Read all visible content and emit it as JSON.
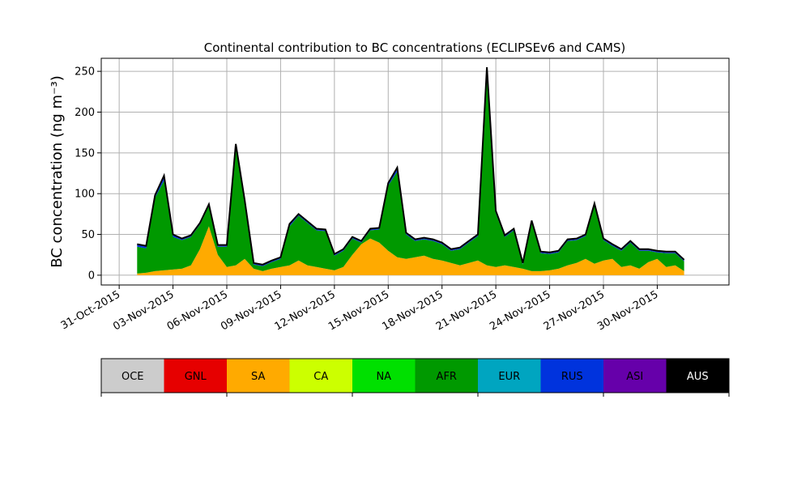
{
  "chart_data": {
    "type": "area",
    "stacked": true,
    "title": "Continental contribution to BC concentrations (ECLIPSEv6 and CAMS)",
    "ylabel": "BC concentration (ng m⁻³)",
    "xlabel": "",
    "x_range": [
      "2015-10-30",
      "2015-12-04"
    ],
    "ylim": [
      -12,
      266
    ],
    "grid": true,
    "xticks": [
      "31-Oct-2015",
      "03-Nov-2015",
      "06-Nov-2015",
      "09-Nov-2015",
      "12-Nov-2015",
      "15-Nov-2015",
      "18-Nov-2015",
      "21-Nov-2015",
      "24-Nov-2015",
      "27-Nov-2015",
      "30-Nov-2015"
    ],
    "yticks": [
      0,
      50,
      100,
      150,
      200,
      250
    ],
    "x": [
      "2015-11-01",
      "2015-11-01T12:00",
      "2015-11-02",
      "2015-11-02T12:00",
      "2015-11-03",
      "2015-11-03T12:00",
      "2015-11-04",
      "2015-11-04T12:00",
      "2015-11-05",
      "2015-11-05T12:00",
      "2015-11-06",
      "2015-11-06T12:00",
      "2015-11-07",
      "2015-11-07T12:00",
      "2015-11-08",
      "2015-11-08T12:00",
      "2015-11-09",
      "2015-11-09T12:00",
      "2015-11-10",
      "2015-11-10T12:00",
      "2015-11-11",
      "2015-11-11T12:00",
      "2015-11-12",
      "2015-11-12T12:00",
      "2015-11-13",
      "2015-11-13T12:00",
      "2015-11-14",
      "2015-11-14T12:00",
      "2015-11-15",
      "2015-11-15T12:00",
      "2015-11-16",
      "2015-11-16T12:00",
      "2015-11-17",
      "2015-11-17T12:00",
      "2015-11-18",
      "2015-11-18T12:00",
      "2015-11-19",
      "2015-11-19T12:00",
      "2015-11-20",
      "2015-11-20T12:00",
      "2015-11-21",
      "2015-11-21T12:00",
      "2015-11-22",
      "2015-11-22T12:00",
      "2015-11-23",
      "2015-11-23T12:00",
      "2015-11-24",
      "2015-11-24T12:00",
      "2015-11-25",
      "2015-11-25T12:00",
      "2015-11-26",
      "2015-11-26T12:00",
      "2015-11-27",
      "2015-11-27T12:00",
      "2015-11-28",
      "2015-11-28T12:00",
      "2015-11-29",
      "2015-11-29T12:00",
      "2015-11-30",
      "2015-11-30T12:00",
      "2015-12-01",
      "2015-12-01T12:00"
    ],
    "series": [
      {
        "name": "OCE",
        "color": "#cccccc",
        "values": [
          0,
          0,
          0,
          0,
          0,
          0,
          0,
          0,
          0,
          0,
          0,
          0,
          0,
          0,
          0,
          0,
          0,
          0,
          0,
          0,
          0,
          0,
          0,
          0,
          0,
          0,
          0,
          0,
          0,
          0,
          0,
          0,
          0,
          0,
          0,
          0,
          0,
          0,
          0,
          0,
          0,
          0,
          0,
          0,
          0,
          0,
          0,
          0,
          0,
          0,
          0,
          0,
          0,
          0,
          0,
          0,
          0,
          0,
          0,
          0,
          0,
          0
        ]
      },
      {
        "name": "GNL",
        "color": "#e60000",
        "values": [
          0,
          0,
          0,
          0,
          0,
          0,
          0,
          0,
          0,
          0,
          0,
          0,
          0,
          0,
          0,
          0,
          0,
          0,
          0,
          0,
          0,
          0,
          0,
          0,
          0,
          0,
          0,
          0,
          0,
          0,
          0,
          0,
          0,
          0,
          0,
          0,
          0,
          0,
          0,
          0,
          0,
          0,
          0,
          0,
          0,
          0,
          0,
          0,
          0,
          0,
          0,
          0,
          0,
          0,
          0,
          0,
          0,
          0,
          0,
          0,
          0,
          0
        ]
      },
      {
        "name": "SA",
        "color": "#ffaa00",
        "values": [
          2,
          3,
          5,
          6,
          7,
          8,
          12,
          32,
          60,
          25,
          10,
          12,
          20,
          8,
          5,
          8,
          10,
          12,
          18,
          12,
          10,
          8,
          6,
          10,
          25,
          38,
          45,
          40,
          30,
          22,
          20,
          22,
          24,
          20,
          18,
          15,
          12,
          15,
          18,
          12,
          10,
          12,
          10,
          8,
          5,
          5,
          6,
          8,
          12,
          15,
          20,
          14,
          18,
          20,
          10,
          12,
          8,
          16,
          20,
          10,
          12,
          5
        ]
      },
      {
        "name": "CA",
        "color": "#ccff00",
        "values": [
          0,
          0,
          0,
          0,
          0,
          0,
          0,
          0,
          0,
          0,
          0,
          0,
          0,
          0,
          0,
          0,
          0,
          0,
          0,
          0,
          0,
          0,
          0,
          0,
          0,
          0,
          0,
          0,
          0,
          0,
          0,
          0,
          0,
          0,
          0,
          0,
          0,
          0,
          0,
          0,
          0,
          0,
          0,
          0,
          0,
          0,
          0,
          0,
          0,
          0,
          0,
          0,
          0,
          0,
          0,
          0,
          0,
          0,
          0,
          0,
          0,
          0
        ]
      },
      {
        "name": "NA",
        "color": "#00e000",
        "values": [
          0,
          0,
          0,
          0,
          0,
          0,
          0,
          0,
          0,
          0,
          0,
          0,
          0,
          0,
          0,
          0,
          0,
          0,
          0,
          0,
          0,
          0,
          0,
          0,
          0,
          0,
          0,
          0,
          0,
          0,
          0,
          0,
          0,
          0,
          0,
          0,
          0,
          0,
          0,
          0,
          0,
          0,
          0,
          0,
          0,
          0,
          0,
          0,
          0,
          0,
          0,
          0,
          0,
          0,
          0,
          0,
          0,
          0,
          0,
          0,
          0,
          0
        ]
      },
      {
        "name": "AFR",
        "color": "#009900",
        "values": [
          33,
          30,
          90,
          110,
          40,
          35,
          35,
          30,
          25,
          10,
          25,
          145,
          70,
          5,
          6,
          8,
          10,
          48,
          55,
          52,
          45,
          46,
          18,
          20,
          20,
          2,
          10,
          16,
          80,
          105,
          30,
          20,
          20,
          22,
          20,
          15,
          20,
          25,
          30,
          235,
          66,
          35,
          45,
          5,
          60,
          22,
          20,
          20,
          30,
          28,
          28,
          72,
          25,
          16,
          20,
          28,
          22,
          14,
          8,
          17,
          15,
          12
        ]
      },
      {
        "name": "EUR",
        "color": "#00a5c0",
        "values": [
          0,
          0,
          0,
          0,
          0,
          0,
          0,
          0,
          0,
          0,
          0,
          0,
          0,
          0,
          0,
          0,
          0,
          0,
          0,
          0,
          0,
          0,
          0,
          0,
          0,
          0,
          0,
          0,
          0,
          0,
          0,
          0,
          0,
          0,
          0,
          0,
          0,
          0,
          0,
          0,
          0,
          0,
          0,
          0,
          0,
          0,
          0,
          0,
          0,
          0,
          0,
          0,
          0,
          0,
          0,
          0,
          0,
          0,
          0,
          0,
          0,
          0
        ]
      },
      {
        "name": "RUS",
        "color": "#0033dd",
        "values": [
          2,
          2,
          2,
          4,
          2,
          1,
          1,
          1,
          1,
          1,
          1,
          2,
          1,
          1,
          1,
          1,
          1,
          2,
          1,
          1,
          1,
          1,
          1,
          1,
          1,
          1,
          1,
          1,
          2,
          3,
          1,
          1,
          1,
          1,
          1,
          1,
          1,
          1,
          1,
          5,
          2,
          1,
          1,
          1,
          1,
          1,
          1,
          1,
          1,
          1,
          1,
          1,
          1,
          1,
          1,
          1,
          1,
          1,
          1,
          1,
          1,
          1
        ]
      },
      {
        "name": "ASI",
        "color": "#6600aa",
        "values": [
          1,
          1,
          1,
          2,
          1,
          1,
          1,
          1,
          1,
          1,
          1,
          2,
          1,
          1,
          1,
          1,
          1,
          1,
          1,
          1,
          1,
          1,
          1,
          1,
          1,
          1,
          1,
          1,
          1,
          2,
          1,
          1,
          1,
          1,
          1,
          1,
          1,
          1,
          1,
          3,
          1,
          1,
          1,
          1,
          1,
          1,
          1,
          1,
          1,
          1,
          1,
          1,
          1,
          1,
          1,
          1,
          1,
          1,
          1,
          1,
          1,
          1
        ]
      },
      {
        "name": "AUS",
        "color": "#000000",
        "values": [
          0,
          0,
          0,
          0,
          0,
          0,
          0,
          0,
          0,
          0,
          0,
          0,
          0,
          0,
          0,
          0,
          0,
          0,
          0,
          0,
          0,
          0,
          0,
          0,
          0,
          0,
          0,
          0,
          0,
          0,
          0,
          0,
          0,
          0,
          0,
          0,
          0,
          0,
          0,
          0,
          0,
          0,
          0,
          0,
          0,
          0,
          0,
          0,
          0,
          0,
          0,
          0,
          0,
          0,
          0,
          0,
          0,
          0,
          0,
          0,
          0,
          0
        ]
      }
    ]
  },
  "legend": {
    "items": [
      {
        "label": "OCE",
        "color": "#cccccc",
        "text_color": "#000000"
      },
      {
        "label": "GNL",
        "color": "#e60000",
        "text_color": "#000000"
      },
      {
        "label": "SA",
        "color": "#ffaa00",
        "text_color": "#000000"
      },
      {
        "label": "CA",
        "color": "#ccff00",
        "text_color": "#000000"
      },
      {
        "label": "NA",
        "color": "#00e000",
        "text_color": "#000000"
      },
      {
        "label": "AFR",
        "color": "#009900",
        "text_color": "#000000"
      },
      {
        "label": "EUR",
        "color": "#00a5c0",
        "text_color": "#000000"
      },
      {
        "label": "RUS",
        "color": "#0033dd",
        "text_color": "#000000"
      },
      {
        "label": "ASI",
        "color": "#6600aa",
        "text_color": "#000000"
      },
      {
        "label": "AUS",
        "color": "#000000",
        "text_color": "#ffffff"
      }
    ]
  }
}
